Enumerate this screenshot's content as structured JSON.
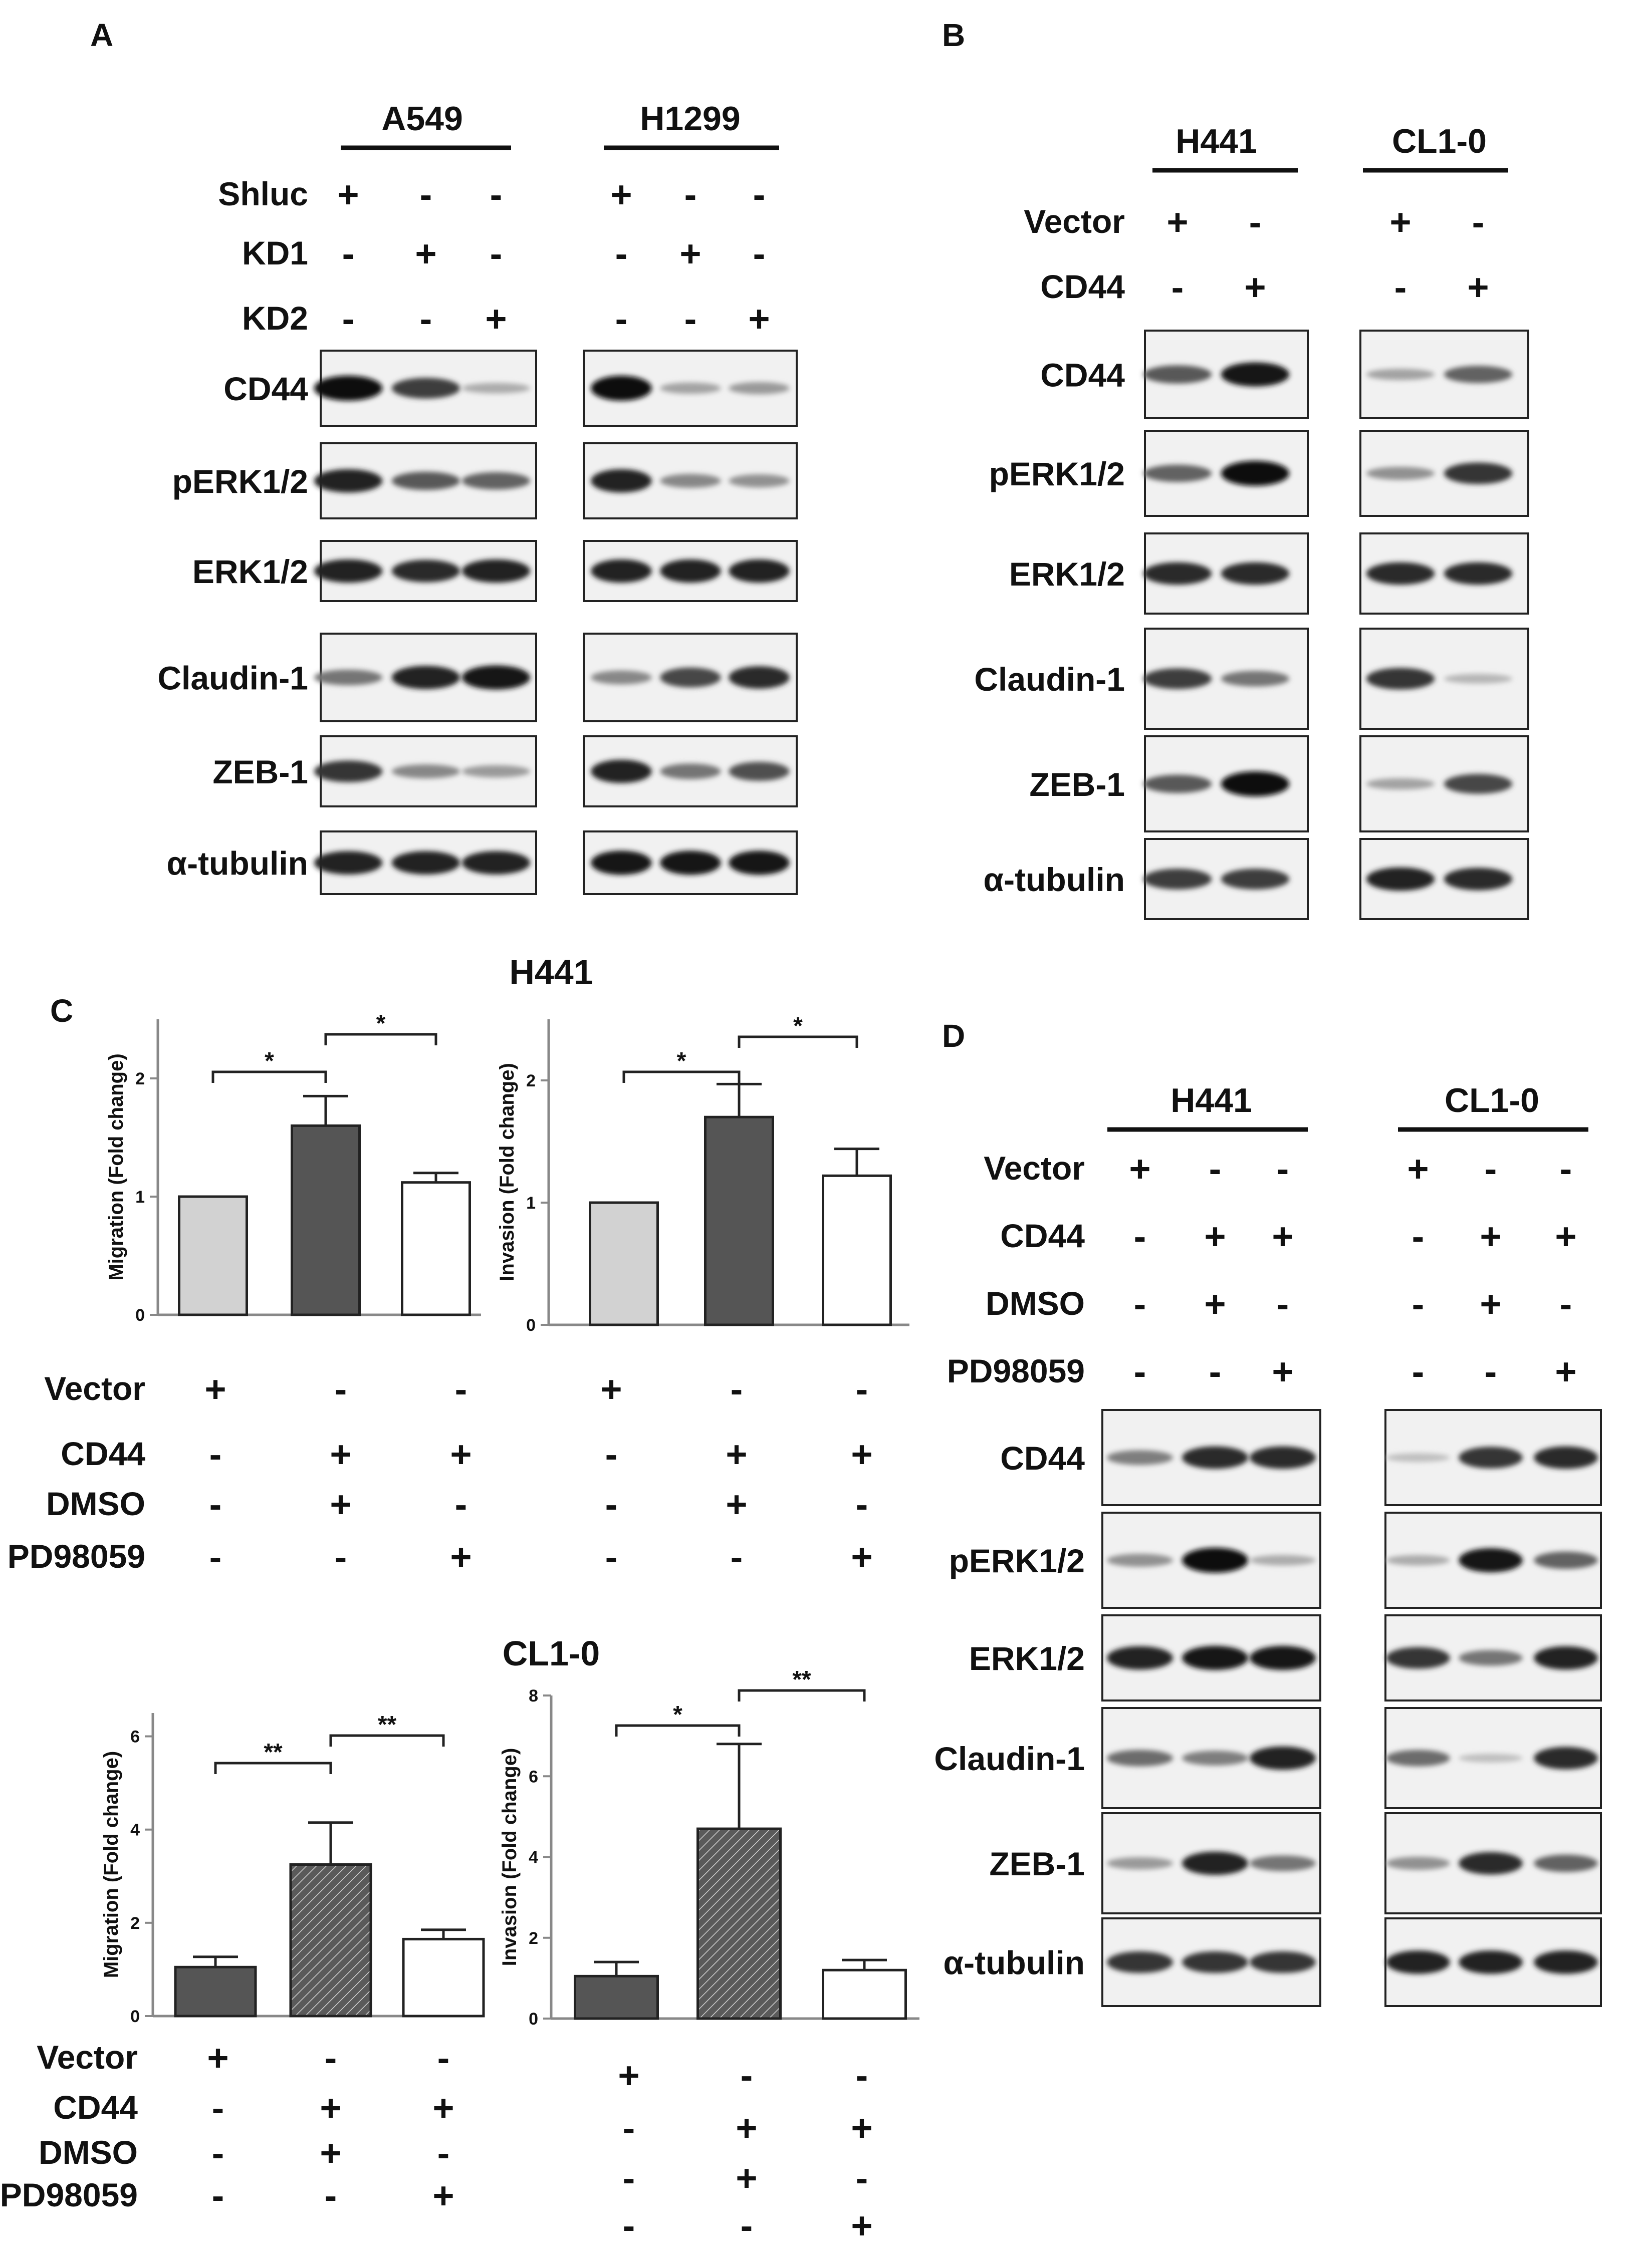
{
  "panels": {
    "A": {
      "letter": "A",
      "cells": [
        "A549",
        "H1299"
      ],
      "conditions": [
        {
          "name": "Shluc",
          "signs": [
            "+",
            "-",
            "-"
          ]
        },
        {
          "name": "KD1",
          "signs": [
            "-",
            "+",
            "-"
          ]
        },
        {
          "name": "KD2",
          "signs": [
            "-",
            "-",
            "+"
          ]
        }
      ],
      "blots": [
        "CD44",
        "pERK1/2",
        "ERK1/2",
        "Claudin-1",
        "ZEB-1",
        "α-tubulin"
      ],
      "band_intensity": {
        "A549": [
          [
            1.0,
            0.75,
            0.15
          ],
          [
            0.9,
            0.6,
            0.55
          ],
          [
            0.9,
            0.85,
            0.9
          ],
          [
            0.45,
            0.9,
            0.95
          ],
          [
            0.8,
            0.35,
            0.25
          ],
          [
            0.9,
            0.9,
            0.9
          ]
        ],
        "H1299": [
          [
            1.0,
            0.2,
            0.25
          ],
          [
            0.9,
            0.35,
            0.3
          ],
          [
            0.9,
            0.9,
            0.9
          ],
          [
            0.35,
            0.7,
            0.85
          ],
          [
            0.9,
            0.45,
            0.65
          ],
          [
            0.95,
            0.95,
            0.95
          ]
        ]
      }
    },
    "B": {
      "letter": "B",
      "cells": [
        "H441",
        "CL1-0"
      ],
      "conditions": [
        {
          "name": "Vector",
          "signs": [
            "+",
            "-"
          ]
        },
        {
          "name": "CD44",
          "signs": [
            "-",
            "+"
          ]
        }
      ],
      "blots": [
        "CD44",
        "pERK1/2",
        "ERK1/2",
        "Claudin-1",
        "ZEB-1",
        "α-tubulin"
      ],
      "band_intensity": {
        "H441": [
          [
            0.6,
            0.95
          ],
          [
            0.55,
            1.0
          ],
          [
            0.85,
            0.85
          ],
          [
            0.75,
            0.45
          ],
          [
            0.6,
            1.0
          ],
          [
            0.75,
            0.75
          ]
        ],
        "CL1-0": [
          [
            0.2,
            0.55
          ],
          [
            0.3,
            0.8
          ],
          [
            0.85,
            0.85
          ],
          [
            0.8,
            0.1
          ],
          [
            0.2,
            0.7
          ],
          [
            0.9,
            0.85
          ]
        ]
      }
    },
    "C": {
      "letter": "C",
      "charts": [
        {
          "type": "bar",
          "cell": "H441",
          "ylabel": "Migration (Fold change)",
          "ylim": [
            0,
            2.5
          ],
          "yticks": [
            0,
            1,
            2
          ],
          "values": [
            1.0,
            1.6,
            1.12
          ],
          "errors": [
            0,
            0.25,
            0.08
          ],
          "fills": [
            "#d2d2d2",
            "#555555",
            "#ffffff"
          ],
          "hatched": [
            false,
            false,
            false
          ],
          "sig": [
            {
              "from": 0,
              "to": 1,
              "label": "*"
            },
            {
              "from": 1,
              "to": 2,
              "label": "*"
            }
          ],
          "conditions": [
            {
              "name": "Vector",
              "signs": [
                "+",
                "-",
                "-"
              ]
            },
            {
              "name": "CD44",
              "signs": [
                "-",
                "+",
                "+"
              ]
            },
            {
              "name": "DMSO",
              "signs": [
                "-",
                "+",
                "-"
              ]
            },
            {
              "name": "PD98059",
              "signs": [
                "-",
                "-",
                "+"
              ]
            }
          ]
        },
        {
          "type": "bar",
          "cell": "",
          "ylabel": "Invasion (Fold change)",
          "ylim": [
            0,
            2.5
          ],
          "yticks": [
            0,
            1,
            2
          ],
          "values": [
            1.0,
            1.7,
            1.22
          ],
          "errors": [
            0,
            0.27,
            0.22
          ],
          "fills": [
            "#d2d2d2",
            "#555555",
            "#ffffff"
          ],
          "hatched": [
            false,
            false,
            false
          ],
          "sig": [
            {
              "from": 0,
              "to": 1,
              "label": "*"
            },
            {
              "from": 1,
              "to": 2,
              "label": "*"
            }
          ],
          "conditions": [
            {
              "name": "",
              "signs": [
                "+",
                "-",
                "-"
              ]
            },
            {
              "name": "",
              "signs": [
                "-",
                "+",
                "+"
              ]
            },
            {
              "name": "",
              "signs": [
                "-",
                "+",
                "-"
              ]
            },
            {
              "name": "",
              "signs": [
                "-",
                "-",
                "+"
              ]
            }
          ]
        },
        {
          "type": "bar",
          "cell": "CL1-0",
          "ylabel": "Migration (Fold change)",
          "ylim": [
            0,
            6.5
          ],
          "yticks": [
            0,
            2,
            4,
            6
          ],
          "values": [
            1.05,
            3.25,
            1.65
          ],
          "errors": [
            0.22,
            0.9,
            0.2
          ],
          "fills": [
            "#555555",
            "#555555",
            "#ffffff"
          ],
          "hatched": [
            false,
            true,
            false
          ],
          "sig": [
            {
              "from": 0,
              "to": 1,
              "label": "**"
            },
            {
              "from": 1,
              "to": 2,
              "label": "**"
            }
          ],
          "conditions": [
            {
              "name": "Vector",
              "signs": [
                "+",
                "-",
                "-"
              ]
            },
            {
              "name": "CD44",
              "signs": [
                "-",
                "+",
                "+"
              ]
            },
            {
              "name": "DMSO",
              "signs": [
                "-",
                "+",
                "-"
              ]
            },
            {
              "name": "PD98059",
              "signs": [
                "-",
                "-",
                "+"
              ]
            }
          ]
        },
        {
          "type": "bar",
          "cell": "",
          "ylabel": "Invasion (Fold change)",
          "ylim": [
            0,
            8
          ],
          "yticks": [
            0,
            2,
            4,
            6,
            8
          ],
          "values": [
            1.05,
            4.7,
            1.2
          ],
          "errors": [
            0.35,
            2.1,
            0.25
          ],
          "fills": [
            "#555555",
            "#555555",
            "#ffffff"
          ],
          "hatched": [
            false,
            true,
            false
          ],
          "sig": [
            {
              "from": 0,
              "to": 1,
              "label": "*"
            },
            {
              "from": 1,
              "to": 2,
              "label": "**"
            }
          ],
          "conditions": [
            {
              "name": "",
              "signs": [
                "+",
                "-",
                "-"
              ]
            },
            {
              "name": "",
              "signs": [
                "-",
                "+",
                "+"
              ]
            },
            {
              "name": "",
              "signs": [
                "-",
                "+",
                "-"
              ]
            },
            {
              "name": "",
              "signs": [
                "-",
                "-",
                "+"
              ]
            }
          ]
        }
      ]
    },
    "D": {
      "letter": "D",
      "cells": [
        "H441",
        "CL1-0"
      ],
      "conditions": [
        {
          "name": "Vector",
          "signs": [
            "+",
            "-",
            "-"
          ]
        },
        {
          "name": "CD44",
          "signs": [
            "-",
            "+",
            "+"
          ]
        },
        {
          "name": "DMSO",
          "signs": [
            "-",
            "+",
            "-"
          ]
        },
        {
          "name": "PD98059",
          "signs": [
            "-",
            "-",
            "+"
          ]
        }
      ],
      "blots": [
        "CD44",
        "pERK1/2",
        "ERK1/2",
        "Claudin-1",
        "ZEB-1",
        "α-tubulin"
      ],
      "band_intensity": {
        "H441": [
          [
            0.4,
            0.85,
            0.85
          ],
          [
            0.3,
            1.0,
            0.15
          ],
          [
            0.9,
            0.95,
            0.95
          ],
          [
            0.5,
            0.4,
            0.9
          ],
          [
            0.25,
            0.9,
            0.45
          ],
          [
            0.8,
            0.8,
            0.8
          ]
        ],
        "CL1-0": [
          [
            0.05,
            0.8,
            0.85
          ],
          [
            0.15,
            0.95,
            0.55
          ],
          [
            0.8,
            0.45,
            0.9
          ],
          [
            0.5,
            0.05,
            0.85
          ],
          [
            0.3,
            0.85,
            0.55
          ],
          [
            0.9,
            0.9,
            0.9
          ]
        ]
      }
    }
  },
  "chart_data": [
    {
      "type": "bar",
      "title": "H441",
      "categories": [
        "Vector",
        "CD44+DMSO",
        "CD44+PD98059"
      ],
      "ylabel": "Migration (Fold change)",
      "ylim": [
        0,
        2.5
      ],
      "values": [
        1.0,
        1.6,
        1.12
      ],
      "errors": [
        0,
        0.25,
        0.08
      ]
    },
    {
      "type": "bar",
      "title": "",
      "categories": [
        "Vector",
        "CD44+DMSO",
        "CD44+PD98059"
      ],
      "ylabel": "Invasion (Fold change)",
      "ylim": [
        0,
        2.5
      ],
      "values": [
        1.0,
        1.7,
        1.22
      ],
      "errors": [
        0,
        0.27,
        0.22
      ]
    },
    {
      "type": "bar",
      "title": "CL1-0",
      "categories": [
        "Vector",
        "CD44+DMSO",
        "CD44+PD98059"
      ],
      "ylabel": "Migration (Fold change)",
      "ylim": [
        0,
        6.5
      ],
      "values": [
        1.05,
        3.25,
        1.65
      ],
      "errors": [
        0.22,
        0.9,
        0.2
      ]
    },
    {
      "type": "bar",
      "title": "",
      "categories": [
        "Vector",
        "CD44+DMSO",
        "CD44+PD98059"
      ],
      "ylabel": "Invasion (Fold change)",
      "ylim": [
        0,
        8
      ],
      "values": [
        1.05,
        4.7,
        1.2
      ],
      "errors": [
        0.35,
        2.1,
        0.25
      ]
    }
  ]
}
